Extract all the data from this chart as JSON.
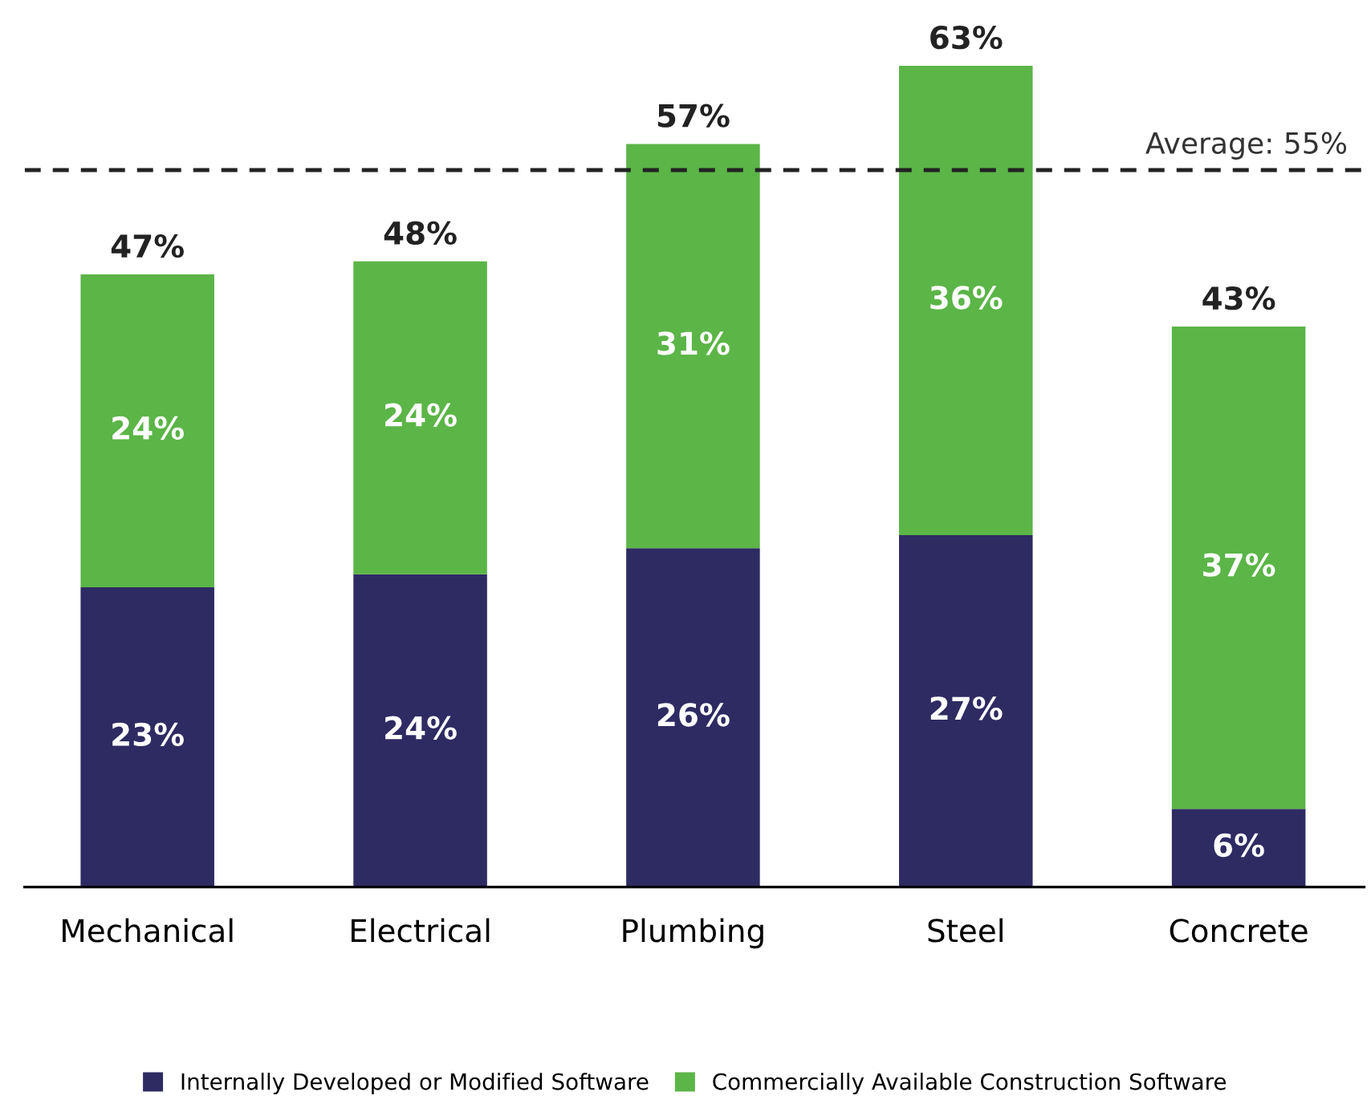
{
  "chart_data": {
    "type": "bar",
    "stacked": true,
    "categories": [
      "Mechanical",
      "Electrical",
      "Plumbing",
      "Steel",
      "Concrete"
    ],
    "series": [
      {
        "name": "Internally Developed or Modified Software",
        "color": "#2e2b63",
        "values": [
          23,
          24,
          26,
          27,
          6
        ],
        "value_labels": [
          "23%",
          "24%",
          "26%",
          "27%",
          "6%"
        ]
      },
      {
        "name": "Commercially Available Construction Software",
        "color": "#5bb547",
        "values": [
          24,
          24,
          31,
          36,
          37
        ],
        "value_labels": [
          "24%",
          "24%",
          "31%",
          "36%",
          "37%"
        ]
      }
    ],
    "totals": [
      "47%",
      "48%",
      "57%",
      "63%",
      "43%"
    ],
    "ref_lines": [
      {
        "axis": "y",
        "value": 55,
        "label": "Average: 55%",
        "color": "#222222",
        "line_style": "dashed"
      }
    ],
    "tick_labels": "x",
    "grid": false,
    "legend": "bottom"
  }
}
